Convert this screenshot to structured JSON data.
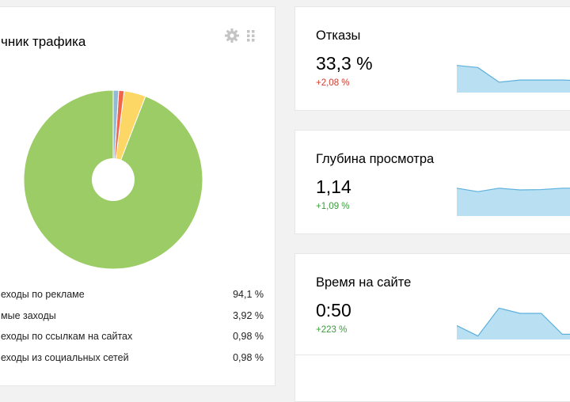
{
  "traffic": {
    "title": "чник трафика",
    "slices": [
      {
        "label": "еходы по рекламе",
        "value_text": "94,1 %",
        "value": 94.1,
        "color": "#9ccc65"
      },
      {
        "label": "мые заходы",
        "value_text": "3,92 %",
        "value": 3.92,
        "color": "#fdd766"
      },
      {
        "label": "еходы по ссылкам на сайтах",
        "value_text": "0,98 %",
        "value": 0.98,
        "color": "#f0644a"
      },
      {
        "label": "еходы из социальных сетей",
        "value_text": "0,98 %",
        "value": 0.98,
        "color": "#93b9d6"
      }
    ]
  },
  "metrics": [
    {
      "title": "Отказы",
      "value": "33,3 %",
      "delta": "+2,08 %",
      "delta_color": "#d03a2c",
      "spark": [
        0.78,
        0.72,
        0.3,
        0.36,
        0.36,
        0.36,
        0.34
      ]
    },
    {
      "title": "Глубина просмотра",
      "value": "1,14",
      "delta": "+1,09 %",
      "delta_color": "#3b9d3b",
      "spark": [
        0.8,
        0.7,
        0.8,
        0.75,
        0.76,
        0.8,
        0.8
      ]
    },
    {
      "title": "Время на сайте",
      "value": "0:50",
      "delta": "+223 %",
      "delta_color": "#3b9d3b",
      "spark": [
        0.4,
        0.1,
        0.9,
        0.75,
        0.75,
        0.15,
        0.15
      ]
    }
  ],
  "icons": {
    "settings": "gear-icon",
    "drag": "drag-handle-icon"
  },
  "colors": {
    "spark_fill": "#b8dff2",
    "spark_line": "#5db0dc"
  }
}
